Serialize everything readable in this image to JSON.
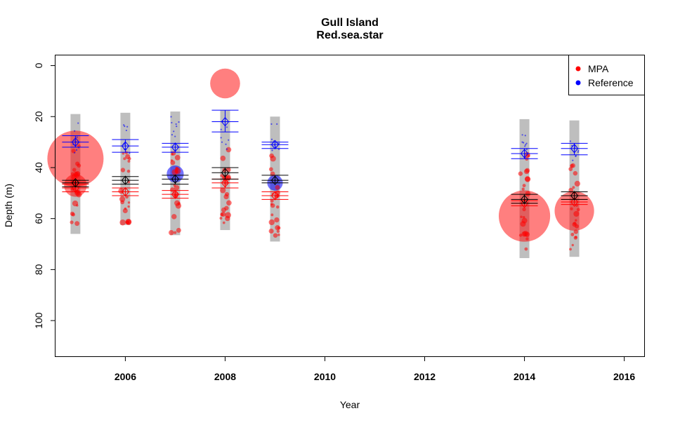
{
  "chart_data": {
    "type": "scatter",
    "title": "Gull Island",
    "subtitle": "Red.sea.star",
    "xlabel": "Year",
    "ylabel": "Depth (m)",
    "xlim": [
      2004.6,
      2016.4
    ],
    "ylim": [
      114,
      -4
    ],
    "y_reversed": true,
    "x_ticks": [
      2006,
      2008,
      2010,
      2012,
      2014,
      2016
    ],
    "y_ticks": [
      0,
      20,
      40,
      60,
      80,
      100
    ],
    "legend": {
      "position": "top-right",
      "entries": [
        {
          "label": "MPA",
          "color": "#ff0000"
        },
        {
          "label": "Reference",
          "color": "#0000ff"
        }
      ]
    },
    "colors": {
      "mpa": "#ff0000",
      "reference": "#0000ff",
      "overall": "#000000",
      "depth_range_bar": "#bebebe"
    },
    "years": [
      2005,
      2006,
      2007,
      2008,
      2009,
      2014,
      2015
    ],
    "depth_range": [
      {
        "year": 2005,
        "min": 19,
        "max": 66
      },
      {
        "year": 2006,
        "min": 18.5,
        "max": 62.5
      },
      {
        "year": 2007,
        "min": 18,
        "max": 66.5
      },
      {
        "year": 2008,
        "min": 17.5,
        "max": 64.5
      },
      {
        "year": 2009,
        "min": 20,
        "max": 69
      },
      {
        "year": 2014,
        "min": 21,
        "max": 75.5
      },
      {
        "year": 2015,
        "min": 21.5,
        "max": 75
      }
    ],
    "series": [
      {
        "name": "MPA",
        "mean_depth": [
          48,
          49.5,
          50.5,
          46,
          51,
          54,
          53.5
        ],
        "ci_low": [
          46.5,
          48,
          49,
          44.5,
          49.5,
          53,
          52.5
        ],
        "ci_high": [
          49.5,
          51,
          52,
          48,
          52.5,
          55,
          54.5
        ]
      },
      {
        "name": "Reference",
        "mean_depth": [
          30,
          31.5,
          32,
          22,
          31,
          34.5,
          32.5
        ],
        "ci_low": [
          27.5,
          29,
          30.5,
          17.5,
          30,
          32.5,
          30.5
        ],
        "ci_high": [
          32,
          34,
          34,
          26,
          32.5,
          36.5,
          35
        ]
      },
      {
        "mean_depth": [
          46,
          45,
          44.5,
          42,
          45,
          52.5,
          51
        ],
        "ci_low": [
          45,
          43.5,
          43,
          40,
          43,
          50.5,
          49.5
        ],
        "ci_high": [
          47.5,
          46.5,
          46.5,
          44.5,
          46,
          54,
          52.5
        ]
      }
    ],
    "large_density_circles": [
      {
        "year": 2005,
        "depth": 36.5,
        "color": "MPA",
        "relative_size": 1.0
      },
      {
        "year": 2005,
        "depth": 47,
        "color": "MPA",
        "relative_size": 0.3
      },
      {
        "year": 2008,
        "depth": 7,
        "color": "MPA",
        "relative_size": 0.45
      },
      {
        "year": 2014,
        "depth": 59,
        "color": "MPA",
        "relative_size": 0.9
      },
      {
        "year": 2015,
        "depth": 57,
        "color": "MPA",
        "relative_size": 0.65
      },
      {
        "year": 2007,
        "depth": 42.5,
        "color": "Reference",
        "relative_size": 0.18
      },
      {
        "year": 2009,
        "depth": 46,
        "color": "Reference",
        "relative_size": 0.15
      }
    ]
  }
}
